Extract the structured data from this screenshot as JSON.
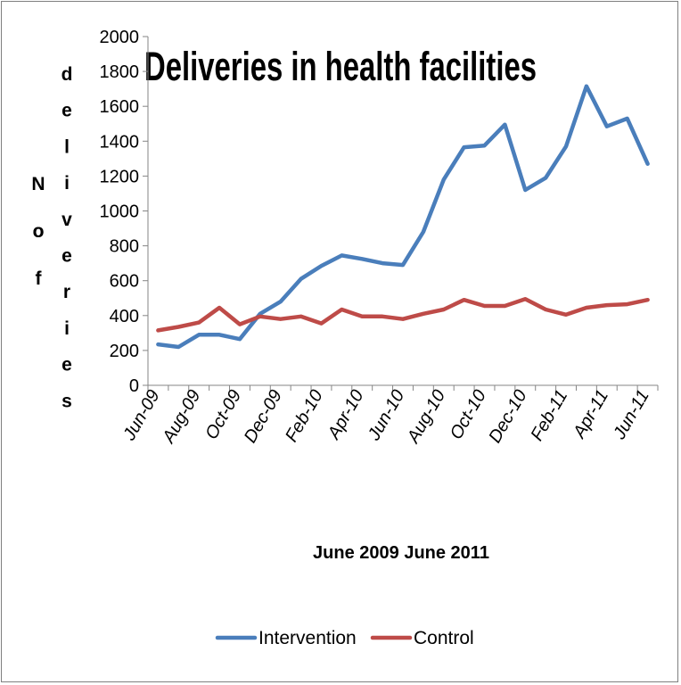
{
  "chart_data": {
    "type": "line",
    "title": "Deliveries in health facilities",
    "xlabel": "June 2009 June 2011",
    "ylabel": "No of deliveries",
    "ylabel_words": [
      "No",
      "of",
      "deliveries"
    ],
    "ylim": [
      0,
      2000
    ],
    "yticks": [
      0,
      200,
      400,
      600,
      800,
      1000,
      1200,
      1400,
      1600,
      1800,
      2000
    ],
    "x": [
      "Jun-09",
      "Jul-09",
      "Aug-09",
      "Sep-09",
      "Oct-09",
      "Nov-09",
      "Dec-09",
      "Jan-10",
      "Feb-10",
      "Mar-10",
      "Apr-10",
      "May-10",
      "Jun-10",
      "Jul-10",
      "Aug-10",
      "Sep-10",
      "Oct-10",
      "Nov-10",
      "Dec-10",
      "Jan-11",
      "Feb-11",
      "Mar-11",
      "Apr-11",
      "May-11",
      "Jun-11"
    ],
    "xtick_labels": [
      "Jun-09",
      "Aug-09",
      "Oct-09",
      "Dec-09",
      "Feb-10",
      "Apr-10",
      "Jun-10",
      "Aug-10",
      "Oct-10",
      "Dec-10",
      "Feb-11",
      "Apr-11",
      "Jun-11"
    ],
    "grid": false,
    "legend_position": "bottom",
    "series": [
      {
        "name": "Intervention",
        "color": "#4a7ebb",
        "values": [
          235,
          220,
          290,
          290,
          265,
          410,
          480,
          610,
          685,
          745,
          725,
          700,
          690,
          880,
          1180,
          1365,
          1375,
          1495,
          1120,
          1190,
          1370,
          1715,
          1485,
          1530,
          1270
        ]
      },
      {
        "name": "Control",
        "color": "#be4b48",
        "values": [
          315,
          335,
          360,
          445,
          350,
          395,
          380,
          395,
          355,
          435,
          395,
          395,
          380,
          410,
          435,
          490,
          455,
          455,
          495,
          435,
          405,
          445,
          460,
          465,
          490
        ]
      }
    ]
  }
}
